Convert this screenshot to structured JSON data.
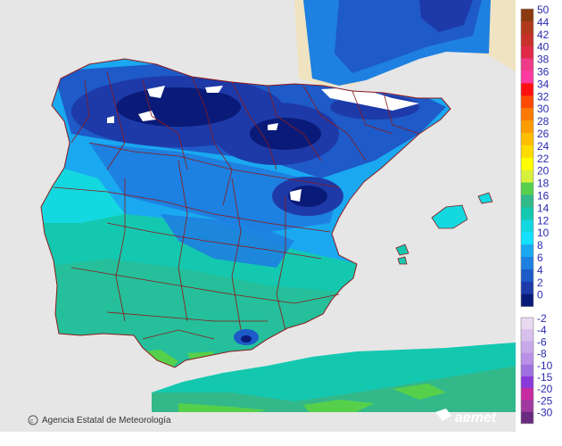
{
  "legend": {
    "items": [
      {
        "label": "50",
        "color": "#8b3a0f"
      },
      {
        "label": "44",
        "color": "#b03a1a"
      },
      {
        "label": "42",
        "color": "#c8302a"
      },
      {
        "label": "40",
        "color": "#e02a48"
      },
      {
        "label": "38",
        "color": "#f03a8a"
      },
      {
        "label": "36",
        "color": "#ff3aa0"
      },
      {
        "label": "34",
        "color": "#ff1010"
      },
      {
        "label": "32",
        "color": "#ff4a00"
      },
      {
        "label": "30",
        "color": "#ff7a00"
      },
      {
        "label": "28",
        "color": "#ff9c00"
      },
      {
        "label": "26",
        "color": "#ffbe00"
      },
      {
        "label": "24",
        "color": "#ffdc00"
      },
      {
        "label": "22",
        "color": "#ffff00"
      },
      {
        "label": "20",
        "color": "#d7f03c"
      },
      {
        "label": "18",
        "color": "#56d04a"
      },
      {
        "label": "16",
        "color": "#33b88a"
      },
      {
        "label": "14",
        "color": "#14c8b0"
      },
      {
        "label": "12",
        "color": "#14d8e0"
      },
      {
        "label": "10",
        "color": "#14e0ff"
      },
      {
        "label": "8",
        "color": "#1aa8f0"
      },
      {
        "label": "6",
        "color": "#1e80e0"
      },
      {
        "label": "4",
        "color": "#1e5ac8"
      },
      {
        "label": "2",
        "color": "#1e3aa8"
      },
      {
        "label": "0",
        "color": "#0a1a78"
      },
      {
        "label": "-2",
        "color": "#e8d8f0"
      },
      {
        "label": "-4",
        "color": "#d8c0ec"
      },
      {
        "label": "-6",
        "color": "#c8a8e8"
      },
      {
        "label": "-8",
        "color": "#b890e8"
      },
      {
        "label": "-10",
        "color": "#a070e0"
      },
      {
        "label": "-15",
        "color": "#8a3ad8"
      },
      {
        "label": "-20",
        "color": "#c82aa0"
      },
      {
        "label": "-25",
        "color": "#a03aa0"
      },
      {
        "label": "-30",
        "color": "#6a2a80"
      }
    ]
  },
  "footer": {
    "credit": "Agencia Estatal de Meteorología",
    "brand": "aemet"
  },
  "colors": {
    "sea": "#e6e6e6",
    "land_other": "#efe3c2",
    "border": "#8b1a1a"
  }
}
